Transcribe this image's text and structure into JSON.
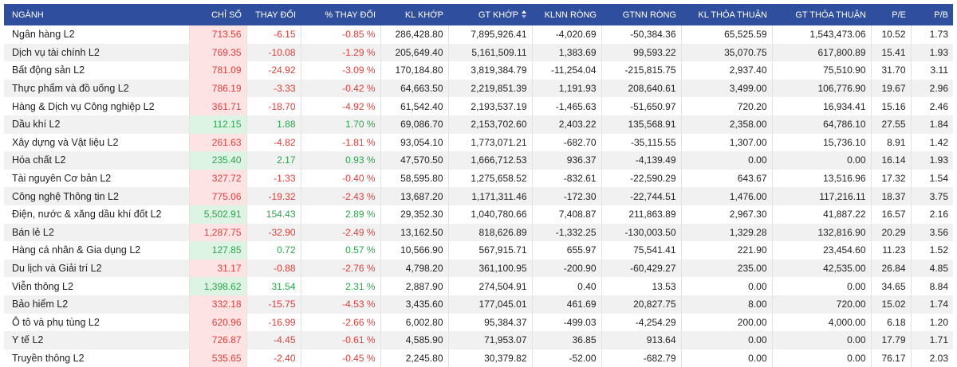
{
  "columns": [
    "NGÀNH",
    "CHỈ SỐ",
    "THAY ĐỔI",
    "% THAY ĐỔI",
    "KL KHỚP",
    "GT KHỚP",
    "KLNN RÒNG",
    "GTNN RÒNG",
    "KL THỎA THUẬN",
    "GT THỎA THUẬN",
    "P/E",
    "P/B"
  ],
  "sort_icon": "sort-icon",
  "rows": [
    {
      "name": "Ngân hàng L2",
      "index": "713.56",
      "change": "-6.15",
      "pct": "-0.85 %",
      "kl": "286,428.80",
      "gt": "7,895,926.41",
      "klnn": "-4,020.69",
      "gtnn": "-50,384.36",
      "kltt": "65,525.59",
      "gttt": "1,543,473.06",
      "pe": "10.52",
      "pb": "1.73",
      "dir": "down"
    },
    {
      "name": "Dịch vụ tài chính L2",
      "index": "769.35",
      "change": "-10.08",
      "pct": "-1.29 %",
      "kl": "205,649.40",
      "gt": "5,161,509.11",
      "klnn": "1,383.69",
      "gtnn": "99,593.22",
      "kltt": "35,070.75",
      "gttt": "617,800.89",
      "pe": "15.41",
      "pb": "1.93",
      "dir": "down"
    },
    {
      "name": "Bất động sản L2",
      "index": "781.09",
      "change": "-24.92",
      "pct": "-3.09 %",
      "kl": "170,184.80",
      "gt": "3,819,384.79",
      "klnn": "-11,254.04",
      "gtnn": "-215,815.75",
      "kltt": "2,937.40",
      "gttt": "75,510.90",
      "pe": "31.70",
      "pb": "3.11",
      "dir": "down"
    },
    {
      "name": "Thực phẩm và đồ uống L2",
      "index": "786.19",
      "change": "-3.33",
      "pct": "-0.42 %",
      "kl": "64,663.50",
      "gt": "2,219,851.39",
      "klnn": "1,191.93",
      "gtnn": "208,640.61",
      "kltt": "3,499.00",
      "gttt": "106,776.90",
      "pe": "19.67",
      "pb": "2.96",
      "dir": "down"
    },
    {
      "name": "Hàng & Dịch vụ Công nghiệp L2",
      "index": "361.71",
      "change": "-18.70",
      "pct": "-4.92 %",
      "kl": "61,542.40",
      "gt": "2,193,537.19",
      "klnn": "-1,465.63",
      "gtnn": "-51,650.97",
      "kltt": "720.20",
      "gttt": "16,934.41",
      "pe": "15.16",
      "pb": "2.46",
      "dir": "down"
    },
    {
      "name": "Dầu khí L2",
      "index": "112.15",
      "change": "1.88",
      "pct": "1.70 %",
      "kl": "69,086.70",
      "gt": "2,153,702.60",
      "klnn": "2,403.22",
      "gtnn": "135,568.91",
      "kltt": "2,358.00",
      "gttt": "64,786.10",
      "pe": "27.55",
      "pb": "1.84",
      "dir": "up"
    },
    {
      "name": "Xây dựng và Vật liệu L2",
      "index": "261.63",
      "change": "-4.82",
      "pct": "-1.81 %",
      "kl": "93,054.10",
      "gt": "1,773,071.21",
      "klnn": "-682.70",
      "gtnn": "-35,115.55",
      "kltt": "1,307.00",
      "gttt": "15,736.10",
      "pe": "8.91",
      "pb": "1.42",
      "dir": "down"
    },
    {
      "name": "Hóa chất L2",
      "index": "235.40",
      "change": "2.17",
      "pct": "0.93 %",
      "kl": "47,570.50",
      "gt": "1,666,712.53",
      "klnn": "936.37",
      "gtnn": "-4,139.49",
      "kltt": "0.00",
      "gttt": "0.00",
      "pe": "16.14",
      "pb": "1.93",
      "dir": "up"
    },
    {
      "name": "Tài nguyên Cơ bản L2",
      "index": "327.72",
      "change": "-1.33",
      "pct": "-0.40 %",
      "kl": "58,595.80",
      "gt": "1,275,658.52",
      "klnn": "-832.61",
      "gtnn": "-22,590.29",
      "kltt": "643.67",
      "gttt": "13,516.96",
      "pe": "17.32",
      "pb": "1.54",
      "dir": "down"
    },
    {
      "name": "Công nghệ Thông tin L2",
      "index": "775.06",
      "change": "-19.32",
      "pct": "-2.43 %",
      "kl": "13,687.20",
      "gt": "1,171,311.46",
      "klnn": "-172.30",
      "gtnn": "-22,744.51",
      "kltt": "1,476.00",
      "gttt": "117,216.11",
      "pe": "18.37",
      "pb": "3.75",
      "dir": "down"
    },
    {
      "name": "Điện, nước & xăng dầu khí đốt L2",
      "index": "5,502.91",
      "change": "154.43",
      "pct": "2.89 %",
      "kl": "29,352.30",
      "gt": "1,040,780.66",
      "klnn": "7,408.87",
      "gtnn": "211,863.89",
      "kltt": "2,967.30",
      "gttt": "41,887.22",
      "pe": "16.57",
      "pb": "2.16",
      "dir": "up"
    },
    {
      "name": "Bán lẻ L2",
      "index": "1,287.75",
      "change": "-32.90",
      "pct": "-2.49 %",
      "kl": "13,162.50",
      "gt": "818,626.89",
      "klnn": "-1,332.25",
      "gtnn": "-130,003.50",
      "kltt": "1,329.28",
      "gttt": "132,816.90",
      "pe": "20.29",
      "pb": "3.56",
      "dir": "down"
    },
    {
      "name": "Hàng cá nhân & Gia dụng L2",
      "index": "127.85",
      "change": "0.72",
      "pct": "0.57 %",
      "kl": "10,566.90",
      "gt": "567,915.71",
      "klnn": "655.97",
      "gtnn": "75,541.41",
      "kltt": "221.90",
      "gttt": "23,454.60",
      "pe": "11.23",
      "pb": "1.52",
      "dir": "up"
    },
    {
      "name": "Du lịch và Giải trí L2",
      "index": "31.17",
      "change": "-0.88",
      "pct": "-2.76 %",
      "kl": "4,798.20",
      "gt": "361,100.95",
      "klnn": "-200.90",
      "gtnn": "-60,429.27",
      "kltt": "235.00",
      "gttt": "42,535.00",
      "pe": "26.84",
      "pb": "4.85",
      "dir": "down"
    },
    {
      "name": "Viễn thông L2",
      "index": "1,398.62",
      "change": "31.54",
      "pct": "2.31 %",
      "kl": "2,887.90",
      "gt": "274,504.91",
      "klnn": "0.40",
      "gtnn": "13.53",
      "kltt": "0.00",
      "gttt": "0.00",
      "pe": "34.65",
      "pb": "8.84",
      "dir": "up"
    },
    {
      "name": "Bảo hiểm L2",
      "index": "332.18",
      "change": "-15.75",
      "pct": "-4.53 %",
      "kl": "3,435.60",
      "gt": "177,045.01",
      "klnn": "461.69",
      "gtnn": "20,827.75",
      "kltt": "8.00",
      "gttt": "720.00",
      "pe": "15.02",
      "pb": "1.74",
      "dir": "down"
    },
    {
      "name": "Ô tô và phụ tùng L2",
      "index": "620.96",
      "change": "-16.99",
      "pct": "-2.66 %",
      "kl": "6,002.80",
      "gt": "95,384.37",
      "klnn": "-499.03",
      "gtnn": "-4,254.29",
      "kltt": "200.00",
      "gttt": "4,000.00",
      "pe": "6.18",
      "pb": "1.20",
      "dir": "down"
    },
    {
      "name": "Y tế L2",
      "index": "726.87",
      "change": "-4.45",
      "pct": "-0.61 %",
      "kl": "4,585.90",
      "gt": "71,953.07",
      "klnn": "36.85",
      "gtnn": "913.64",
      "kltt": "0.00",
      "gttt": "0.00",
      "pe": "17.79",
      "pb": "1.71",
      "dir": "down"
    },
    {
      "name": "Truyền thông L2",
      "index": "535.65",
      "change": "-2.40",
      "pct": "-0.45 %",
      "kl": "2,245.80",
      "gt": "30,379.82",
      "klnn": "-52.00",
      "gtnn": "-682.79",
      "kltt": "0.00",
      "gttt": "0.00",
      "pe": "76.17",
      "pb": "2.03",
      "dir": "down"
    }
  ]
}
